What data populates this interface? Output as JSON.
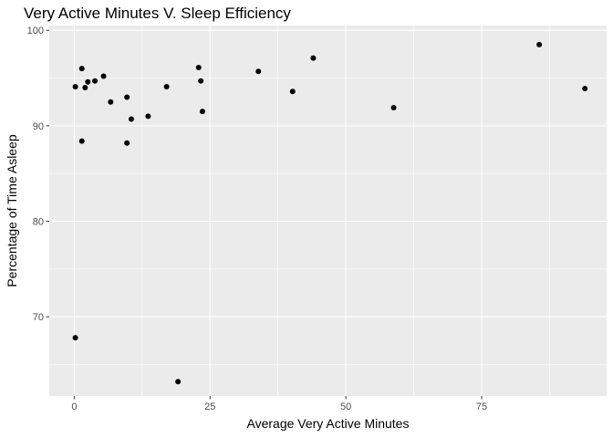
{
  "chart_data": {
    "type": "scatter",
    "title": "Very Active Minutes V. Sleep Efficiency",
    "xlabel": "Average Very Active Minutes",
    "ylabel": "Percentage of Time Asleep",
    "xlim": [
      -4.6,
      98.0
    ],
    "ylim": [
      61.7,
      100.5
    ],
    "x_ticks": [
      0,
      25,
      50,
      75
    ],
    "x_tick_labels": [
      "0",
      "25",
      "50",
      "75"
    ],
    "y_ticks": [
      70,
      80,
      90,
      100
    ],
    "y_tick_labels": [
      "70",
      "80",
      "90",
      "100"
    ],
    "grid": true,
    "legend": "none",
    "colors": {
      "panel": "#ebebeb",
      "grid_major": "#ffffff",
      "point": "#000000"
    },
    "points": [
      {
        "x": 0.2,
        "y": 94.1
      },
      {
        "x": 0.2,
        "y": 67.8
      },
      {
        "x": 1.4,
        "y": 96.0
      },
      {
        "x": 1.4,
        "y": 88.4
      },
      {
        "x": 2.0,
        "y": 94.0
      },
      {
        "x": 2.5,
        "y": 94.6
      },
      {
        "x": 3.8,
        "y": 94.7
      },
      {
        "x": 5.4,
        "y": 95.2
      },
      {
        "x": 6.7,
        "y": 92.5
      },
      {
        "x": 9.7,
        "y": 93.0
      },
      {
        "x": 9.7,
        "y": 88.2
      },
      {
        "x": 10.5,
        "y": 90.7
      },
      {
        "x": 13.6,
        "y": 91.0
      },
      {
        "x": 17.0,
        "y": 94.1
      },
      {
        "x": 19.1,
        "y": 63.2
      },
      {
        "x": 22.9,
        "y": 96.1
      },
      {
        "x": 23.3,
        "y": 94.7
      },
      {
        "x": 23.6,
        "y": 91.5
      },
      {
        "x": 33.9,
        "y": 95.7
      },
      {
        "x": 40.2,
        "y": 93.6
      },
      {
        "x": 44.0,
        "y": 97.1
      },
      {
        "x": 58.8,
        "y": 91.9
      },
      {
        "x": 85.6,
        "y": 98.5
      },
      {
        "x": 94.0,
        "y": 93.9
      }
    ]
  }
}
